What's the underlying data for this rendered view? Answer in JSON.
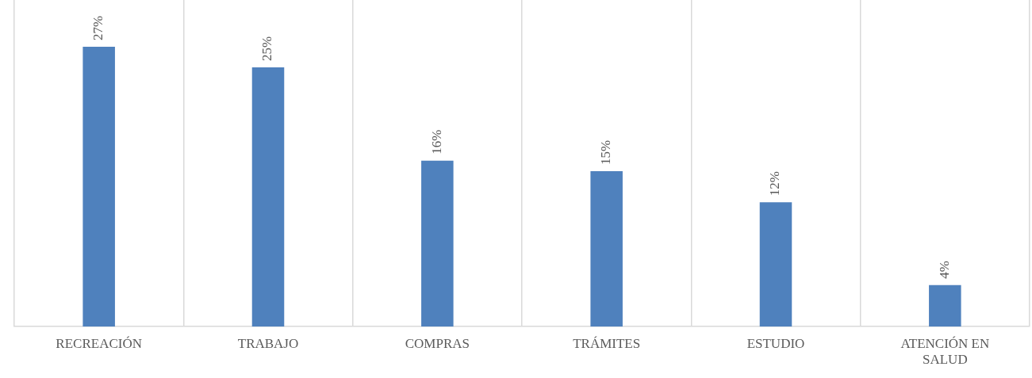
{
  "chart_data": {
    "type": "bar",
    "categories": [
      "RECREACIÓN",
      "TRABAJO",
      "COMPRAS",
      "TRÁMITES",
      "ESTUDIO",
      "ATENCIÓN EN SALUD"
    ],
    "values": [
      27,
      25,
      16,
      15,
      12,
      4
    ],
    "value_labels": [
      "27%",
      "25%",
      "16%",
      "15%",
      "12%",
      "4%"
    ],
    "color": "#4f81bd",
    "ylim": [
      0,
      31.5
    ],
    "grid": "x",
    "legend": false,
    "tick_labels": "x"
  }
}
